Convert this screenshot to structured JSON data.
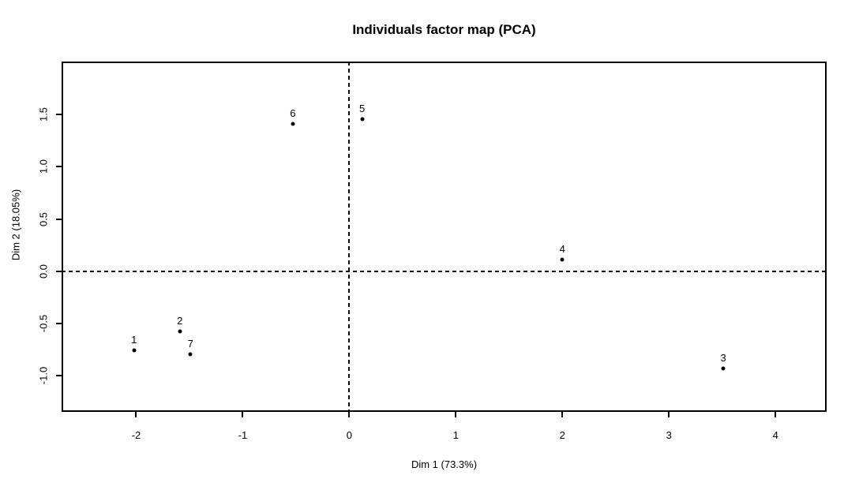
{
  "chart_data": {
    "type": "scatter",
    "title": "Individuals factor map (PCA)",
    "xlabel": "Dim 1 (73.3%)",
    "ylabel": "Dim 2 (18.05%)",
    "points": [
      {
        "label": "1",
        "x": -2.02,
        "y": -0.76
      },
      {
        "label": "2",
        "x": -1.59,
        "y": -0.58
      },
      {
        "label": "3",
        "x": 3.51,
        "y": -0.93
      },
      {
        "label": "4",
        "x": 2.0,
        "y": 0.11
      },
      {
        "label": "5",
        "x": 0.12,
        "y": 1.46
      },
      {
        "label": "6",
        "x": -0.53,
        "y": 1.41
      },
      {
        "label": "7",
        "x": -1.49,
        "y": -0.8
      }
    ],
    "x_tick_values": [
      -2,
      -1,
      0,
      1,
      2,
      3,
      4
    ],
    "x_tick_labels": [
      "-2",
      "-1",
      "0",
      "1",
      "2",
      "3",
      "4"
    ],
    "y_tick_values": [
      1.5,
      1.0,
      0.5,
      0.0,
      -0.5,
      -1.0
    ],
    "y_tick_labels": [
      "1.5",
      "1.0",
      "0.5",
      "0.0",
      "-0.5",
      "-1.0"
    ],
    "xlim": [
      -2.7,
      4.48
    ],
    "ylim": [
      -1.35,
      2.01
    ],
    "reference_lines": {
      "x": 0,
      "y": 0,
      "style": "dashed"
    },
    "grid": false,
    "legend": null,
    "colors": {
      "point": "#000000",
      "text": "#000000",
      "box_border": "#000000",
      "background": "#ffffff"
    }
  }
}
